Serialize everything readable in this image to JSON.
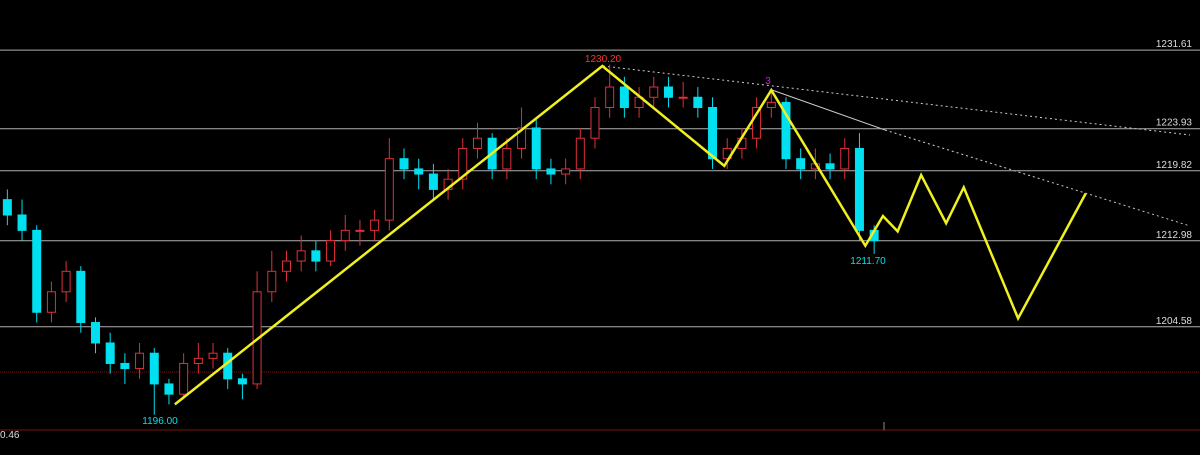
{
  "chart_data": {
    "type": "candlestick",
    "up_color": "#e0303a",
    "down_color": "#00e0f0",
    "grid_color": "#b0b0b0",
    "ylim": [
      1194.5,
      1236.5
    ],
    "xlim": [
      -0.5,
      80.5
    ],
    "yticks": [
      1231.61,
      1223.93,
      1219.82,
      1212.98,
      1204.58
    ],
    "open": [
      1217,
      1215.5,
      1214,
      1206,
      1208,
      1210,
      1205,
      1203,
      1201,
      1200.5,
      1202,
      1199,
      1198,
      1201,
      1201.5,
      1202,
      1199.5,
      1199,
      1208,
      1210,
      1211,
      1212,
      1211,
      1213,
      1214,
      1214,
      1215,
      1221,
      1220,
      1219.5,
      1218,
      1219,
      1222,
      1223,
      1220,
      1222,
      1224,
      1220,
      1219.5,
      1220,
      1223,
      1226,
      1228,
      1226,
      1227,
      1228,
      1227,
      1227,
      1226,
      1221,
      1222,
      1223,
      1226,
      1226.5,
      1221,
      1220,
      1220.5,
      1220,
      1222,
      1214
    ],
    "high": [
      1218,
      1217,
      1214.5,
      1209,
      1211,
      1210.5,
      1205.5,
      1204,
      1202,
      1203,
      1202.5,
      1199.5,
      1202,
      1203,
      1203,
      1202.5,
      1200,
      1210,
      1212,
      1212,
      1213.5,
      1213,
      1214,
      1215.5,
      1215,
      1216,
      1223,
      1222,
      1221,
      1220.5,
      1220,
      1223,
      1224.5,
      1223.5,
      1223,
      1226,
      1225,
      1221,
      1221,
      1224,
      1227,
      1230.2,
      1229,
      1228,
      1229,
      1229,
      1228.5,
      1228,
      1227,
      1223,
      1224,
      1227,
      1227.5,
      1227,
      1222,
      1222,
      1221.5,
      1223,
      1223.5,
      1214.5
    ],
    "low": [
      1214.5,
      1213,
      1205,
      1205,
      1207,
      1204,
      1202,
      1200,
      1199,
      1199.5,
      1196,
      1197,
      1197.5,
      1200,
      1200.5,
      1198.5,
      1197.5,
      1198.5,
      1207,
      1209,
      1210,
      1210,
      1210.5,
      1212,
      1212.5,
      1213,
      1214,
      1219,
      1218,
      1217,
      1217,
      1218,
      1221,
      1219,
      1219,
      1221,
      1219,
      1218.5,
      1218.5,
      1219,
      1222,
      1225,
      1225,
      1225,
      1226,
      1226,
      1226,
      1225,
      1220,
      1220,
      1221,
      1222,
      1225,
      1220,
      1219,
      1219,
      1219,
      1219,
      1213,
      1211.7
    ],
    "close": [
      1215.5,
      1214,
      1206,
      1208,
      1210,
      1205,
      1203,
      1201,
      1200.5,
      1202,
      1199,
      1198,
      1201,
      1201.5,
      1202,
      1199.5,
      1199,
      1208,
      1210,
      1211,
      1212,
      1211,
      1213,
      1214,
      1214,
      1215,
      1221,
      1220,
      1219.5,
      1218,
      1219,
      1222,
      1223,
      1220,
      1222,
      1224,
      1220,
      1219.5,
      1220,
      1223,
      1226,
      1228,
      1226,
      1227,
      1228,
      1227,
      1227,
      1226,
      1221,
      1222,
      1223,
      1226,
      1226.5,
      1221,
      1220,
      1220.5,
      1220,
      1222,
      1214,
      1213
    ],
    "pattern": {
      "color": "#f0f020",
      "x": [
        11.4,
        40.5,
        48.8,
        52.0,
        58.4,
        59.6,
        60.6,
        62.2,
        63.9,
        65.1,
        68.8,
        73.4
      ],
      "values": [
        1197.0,
        1230.05,
        1220.3,
        1227.7,
        1212.5,
        1215.4,
        1213.9,
        1219.4,
        1214.7,
        1218.2,
        1205.4,
        1217.6
      ]
    },
    "annotations": [
      "1230.20",
      "1196.00",
      "1211.70",
      "3",
      "0.46"
    ]
  }
}
